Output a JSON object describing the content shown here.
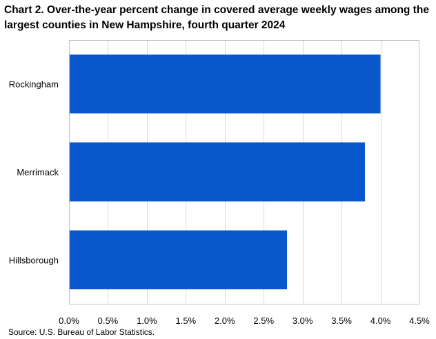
{
  "chart_data": {
    "type": "bar",
    "orientation": "horizontal",
    "title": "Chart 2. Over-the-year percent change in covered average weekly wages among the largest counties in New Hampshire, fourth quarter 2024",
    "categories": [
      "Rockingham",
      "Merrimack",
      "Hillsborough"
    ],
    "values": [
      4.0,
      3.8,
      2.8
    ],
    "unit": "%",
    "xlim": [
      0,
      4.5
    ],
    "xticks": [
      0.0,
      0.5,
      1.0,
      1.5,
      2.0,
      2.5,
      3.0,
      3.5,
      4.0,
      4.5
    ],
    "xtick_labels": [
      "0.0%",
      "0.5%",
      "1.0%",
      "1.5%",
      "2.0%",
      "2.5%",
      "3.0%",
      "3.5%",
      "4.0%",
      "4.5%"
    ],
    "grid": "vertical",
    "bar_color": "#0857cc",
    "grid_color": "#d9d9d9",
    "source": "Source: U.S. Bureau of Labor Statistics."
  }
}
